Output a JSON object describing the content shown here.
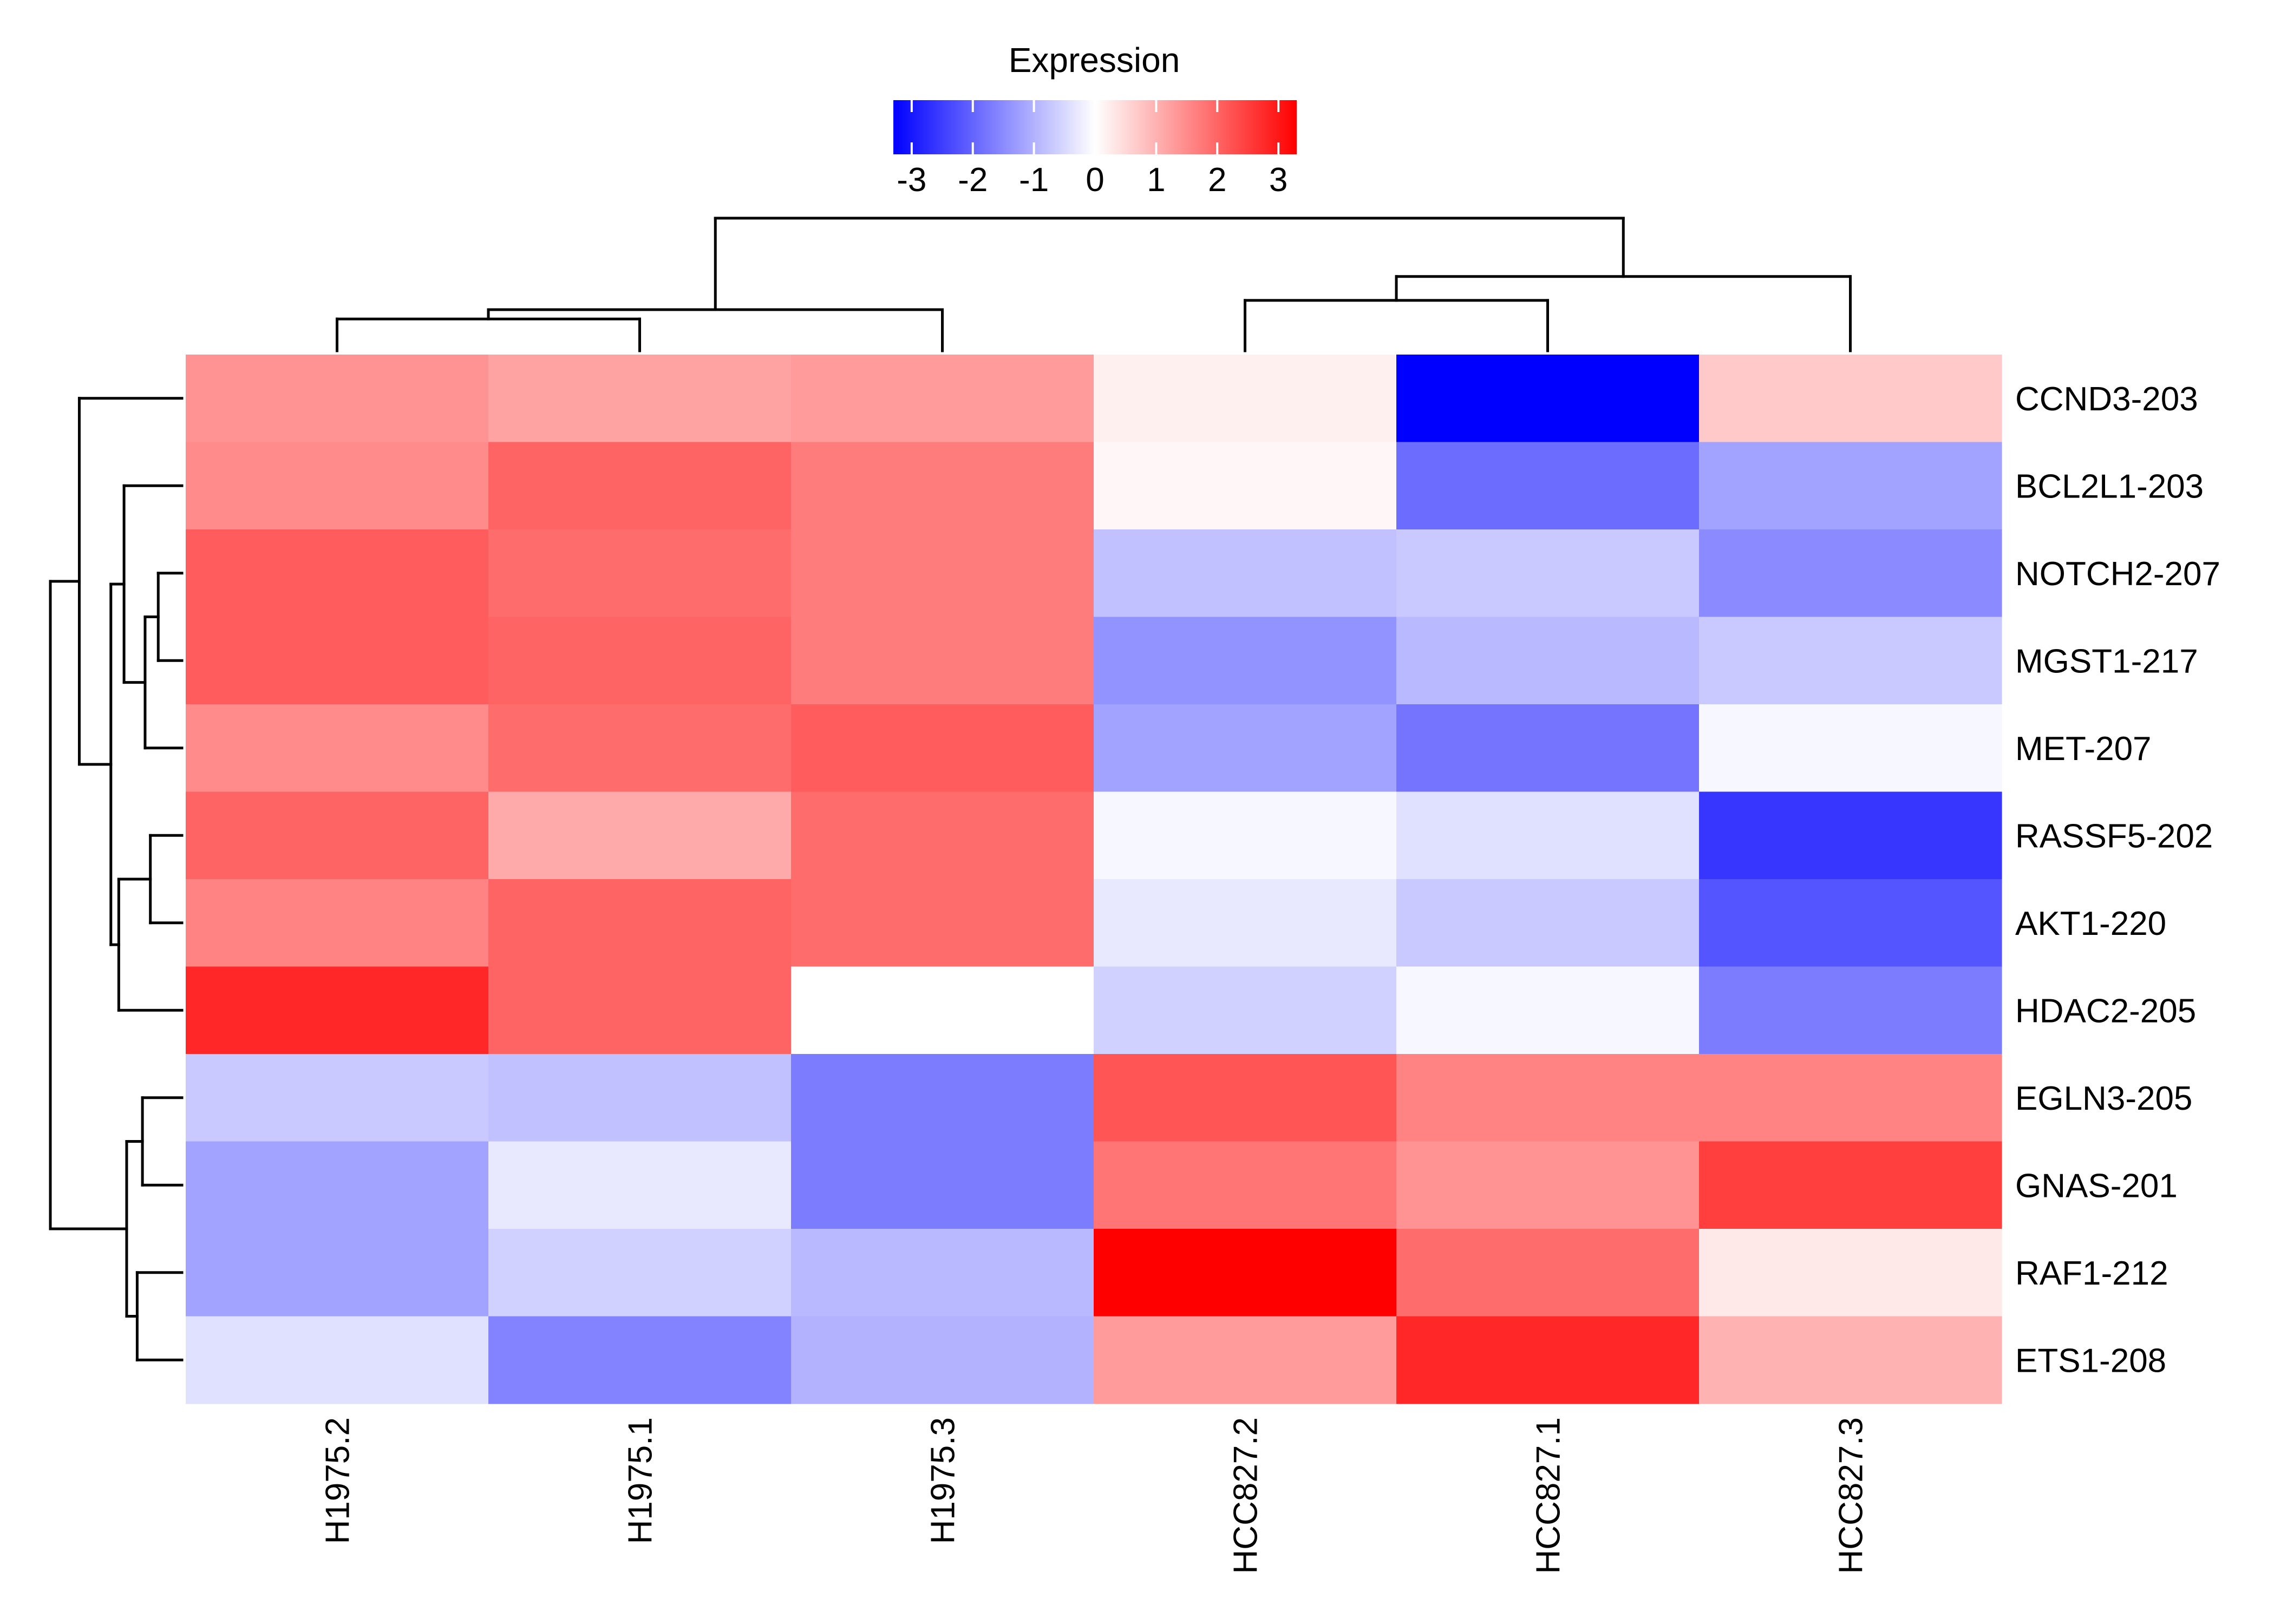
{
  "chart_data": {
    "type": "heatmap",
    "legend": {
      "title": "Expression",
      "ticks": [
        -3,
        -2,
        -1,
        0,
        1,
        2,
        3
      ],
      "tick_labels": [
        "-3",
        "-2",
        "-1",
        "0",
        "1",
        "2",
        "3"
      ],
      "range": [
        -3.3,
        3.3
      ],
      "placement": "top-center",
      "colors": {
        "low": "#0000FF",
        "mid": "#FFFFFF",
        "high": "#FF0000"
      }
    },
    "rows": [
      "CCND3-203",
      "BCL2L1-203",
      "NOTCH2-207",
      "MGST1-217",
      "MET-207",
      "RASSF5-202",
      "AKT1-220",
      "HDAC2-205",
      "EGLN3-205",
      "GNAS-201",
      "RAF1-212",
      "ETS1-208"
    ],
    "columns": [
      "H1975.2",
      "H1975.1",
      "H1975.3",
      "HCC827.2",
      "HCC827.1",
      "HCC827.3"
    ],
    "values": [
      [
        1.4,
        1.2,
        1.3,
        0.2,
        -3.3,
        0.7
      ],
      [
        1.5,
        2.0,
        1.7,
        0.1,
        -1.9,
        -1.2
      ],
      [
        2.1,
        1.9,
        1.7,
        -0.8,
        -0.7,
        -1.5
      ],
      [
        2.1,
        2.0,
        1.7,
        -1.4,
        -0.9,
        -0.7
      ],
      [
        1.5,
        1.9,
        2.1,
        -1.2,
        -1.8,
        -0.1
      ],
      [
        2.0,
        1.1,
        1.9,
        -0.1,
        -0.4,
        -2.6
      ],
      [
        1.6,
        2.0,
        1.9,
        -0.3,
        -0.7,
        -2.2
      ],
      [
        2.8,
        2.0,
        0.0,
        -0.6,
        -0.1,
        -1.7
      ],
      [
        -0.7,
        -0.8,
        -1.7,
        2.2,
        1.6,
        1.6
      ],
      [
        -1.2,
        -0.3,
        -1.7,
        1.8,
        1.4,
        2.5
      ],
      [
        -1.2,
        -0.6,
        -0.9,
        3.3,
        1.9,
        0.3
      ],
      [
        -0.4,
        -1.6,
        -1.0,
        1.3,
        2.8,
        1.0
      ]
    ],
    "row_dendrogram": [
      {
        "a": 2,
        "b": 3,
        "h": 0.18
      },
      {
        "a": 5,
        "b": 6,
        "h": 0.24
      },
      {
        "a": 8,
        "b": 9,
        "h": 0.3
      },
      {
        "a": 10,
        "b": 11,
        "h": 0.34
      },
      {
        "a": 12,
        "b": 4,
        "h": 0.28
      },
      {
        "a": 13,
        "b": 7,
        "h": 0.48
      },
      {
        "a": 1,
        "b": 16,
        "h": 0.44
      },
      {
        "a": 14,
        "b": 15,
        "h": 0.42
      },
      {
        "a": 18,
        "b": 17,
        "h": 0.54
      },
      {
        "a": 0,
        "b": 20,
        "h": 0.78
      },
      {
        "a": 21,
        "b": 19,
        "h": 1.0
      }
    ],
    "column_dendrogram": [
      {
        "a": 0,
        "b": 1,
        "h": 0.24
      },
      {
        "a": 3,
        "b": 4,
        "h": 0.38
      },
      {
        "a": 6,
        "b": 2,
        "h": 0.31
      },
      {
        "a": 7,
        "b": 5,
        "h": 0.56
      },
      {
        "a": 8,
        "b": 9,
        "h": 1.0
      }
    ]
  }
}
